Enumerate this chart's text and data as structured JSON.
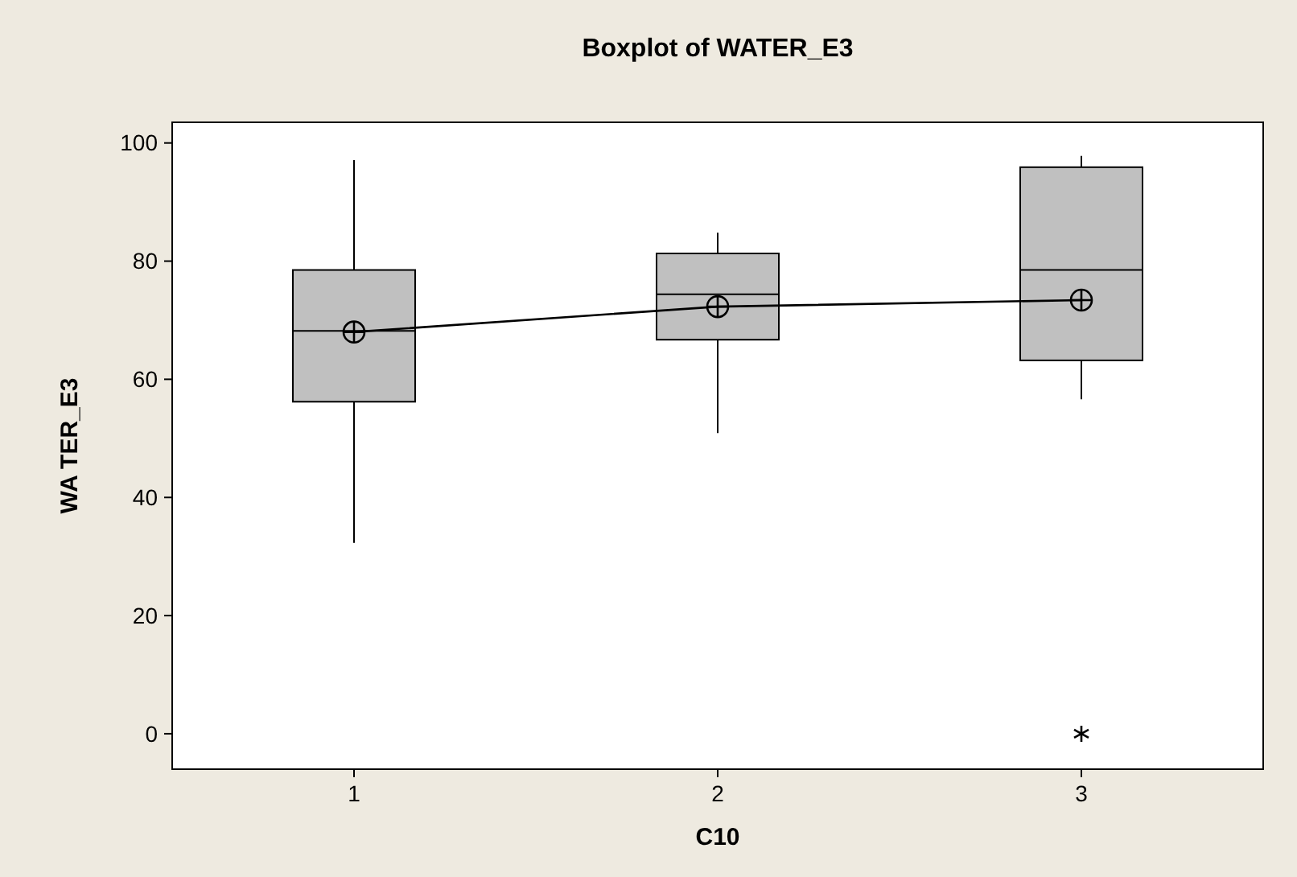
{
  "chart_data": {
    "type": "box",
    "title": "Boxplot of WATER_E3",
    "xlabel": "C10",
    "ylabel": "WA TER_E3",
    "categories": [
      "1",
      "2",
      "3"
    ],
    "ylim": [
      -6,
      103.5
    ],
    "yticks": [
      0,
      20,
      40,
      60,
      80,
      100
    ],
    "color": "#c0c0c0",
    "boxes": [
      {
        "low": 32.3,
        "q1": 56.2,
        "median": 68.2,
        "q3": 78.5,
        "high": 97.1,
        "mean": 68
      },
      {
        "low": 50.9,
        "q1": 66.7,
        "median": 74.4,
        "q3": 81.3,
        "high": 84.8,
        "mean": 72.3
      },
      {
        "low": 56.6,
        "q1": 63.2,
        "median": 78.5,
        "q3": 95.9,
        "high": 97.8,
        "mean": 73.4,
        "outliers": [
          0
        ]
      }
    ],
    "series": [
      {
        "type": "line",
        "color": "#000000",
        "marker": "none",
        "values": [
          68,
          72.3,
          73.4
        ]
      }
    ]
  }
}
